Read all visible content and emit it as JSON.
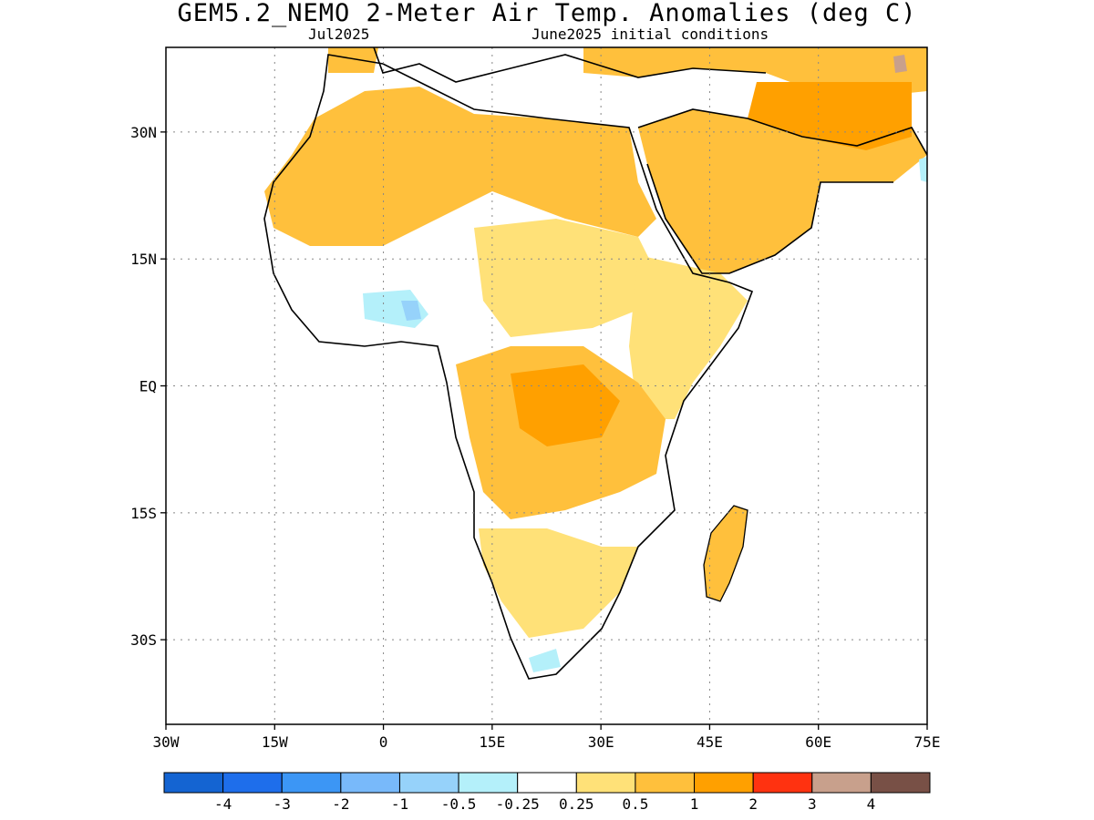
{
  "header": {
    "title": "GEM5.2_NEMO 2-Meter Air Temp. Anomalies (deg C)",
    "valid_month": "Jul2025",
    "initial_conditions": "June2025 initial conditions"
  },
  "map": {
    "lon_range": [
      -30,
      75
    ],
    "lat_range": [
      -40,
      40
    ],
    "lon_ticks": [
      "30W",
      "15W",
      "0",
      "15E",
      "30E",
      "45E",
      "60E",
      "75E"
    ],
    "lat_ticks": [
      "30N",
      "15N",
      "EQ",
      "15S",
      "30S"
    ],
    "grid": "dotted"
  },
  "legend": {
    "labels": [
      "-4",
      "-3",
      "-2",
      "-1",
      "-0.5",
      "-0.25",
      "0.25",
      "0.5",
      "1",
      "2",
      "3",
      "4"
    ],
    "colors": [
      "#1464d2",
      "#1e6eeb",
      "#3c96f5",
      "#78b9fa",
      "#96d2fa",
      "#b4f0fa",
      "#ffffff",
      "#ffe178",
      "#ffc03c",
      "#ffa000",
      "#ff3210",
      "#c8a08c",
      "#785046"
    ]
  }
}
